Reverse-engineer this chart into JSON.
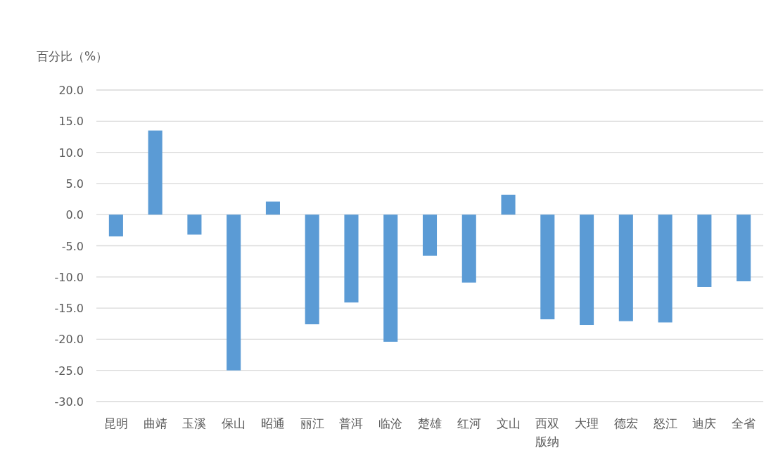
{
  "chart_data": {
    "type": "bar",
    "ylabel": "百分比（%）",
    "categories": [
      "昆明",
      "曲靖",
      "玉溪",
      "保山",
      "昭通",
      "丽江",
      "普洱",
      "临沧",
      "楚雄",
      "红河",
      "文山",
      "西双版纳",
      "大理",
      "德宏",
      "怒江",
      "迪庆",
      "全省"
    ],
    "values": [
      -3.5,
      13.5,
      -3.2,
      -25.0,
      2.1,
      -17.6,
      -14.1,
      -20.4,
      -6.6,
      -10.9,
      3.2,
      -16.8,
      -17.7,
      -17.1,
      -17.3,
      -11.6,
      -10.7
    ],
    "color": "#5b9bd5",
    "ylim": [
      -30,
      20
    ],
    "yticks": [
      {
        "value": -30,
        "label": "-30.0"
      },
      {
        "value": -25,
        "label": "-25.0"
      },
      {
        "value": -20,
        "label": "-20.0"
      },
      {
        "value": -15,
        "label": "-15.0"
      },
      {
        "value": -10,
        "label": "-10.0"
      },
      {
        "value": -5,
        "label": "-5.0"
      },
      {
        "value": 0,
        "label": "0.0"
      },
      {
        "value": 5,
        "label": "5.0"
      },
      {
        "value": 10,
        "label": "10.0"
      },
      {
        "value": 15,
        "label": "15.0"
      },
      {
        "value": 20,
        "label": "20.0"
      }
    ],
    "grid": "y"
  }
}
